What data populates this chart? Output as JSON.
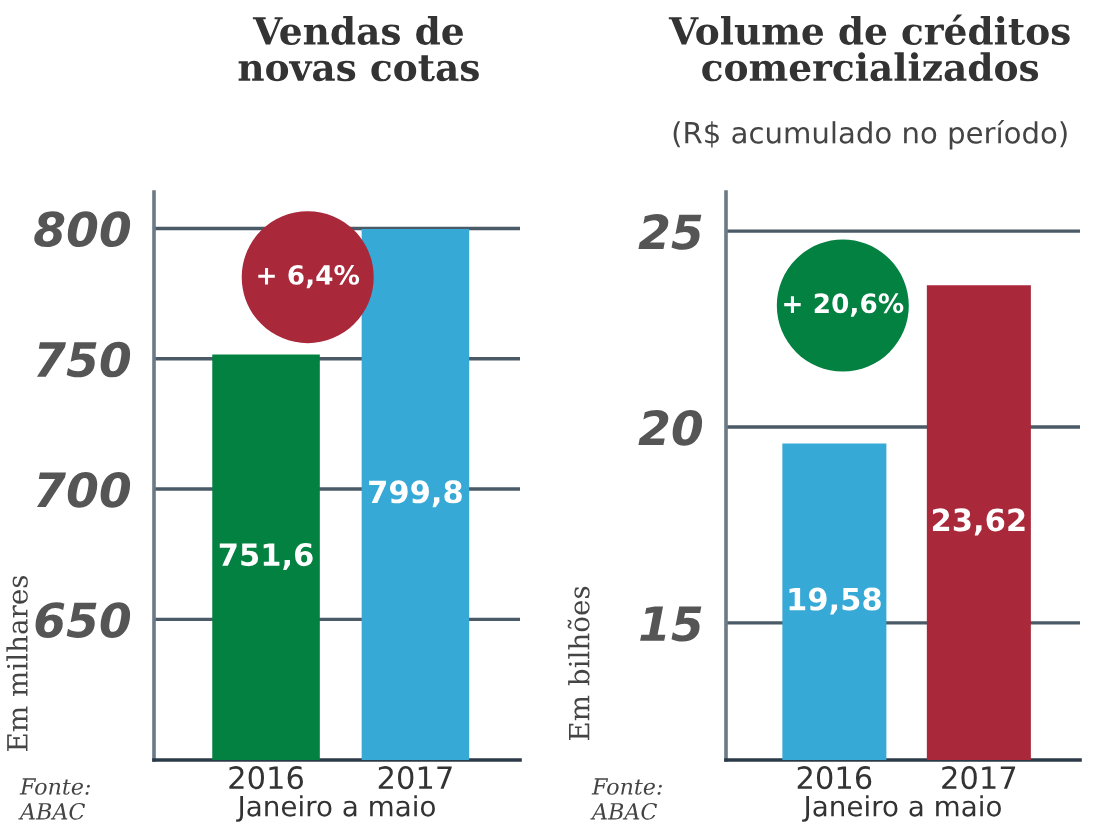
{
  "chart_data": [
    {
      "type": "bar",
      "title": "Vendas de\nnovas cotas",
      "categories": [
        "2016",
        "2017"
      ],
      "xlabel": "Janeiro a maio",
      "ylabel": "Em milhares",
      "series": [
        {
          "colors": [
            "#038141",
            "#36a9d6"
          ],
          "values": [
            751.6,
            799.8
          ],
          "value_labels": [
            "751,6",
            "799,8"
          ]
        }
      ],
      "ylim": [
        596,
        814
      ],
      "yticks": [
        650,
        700,
        750,
        800
      ],
      "grid": "y",
      "annotations": [
        "+ 6,4%",
        "Fonte:\nABAC"
      ]
    },
    {
      "type": "bar",
      "title": "Volume de créditos\ncomercializados",
      "subtitle": "(R$ acumulado no período)",
      "categories": [
        "2016",
        "2017"
      ],
      "xlabel": "Janeiro a maio",
      "ylabel": "Em bilhões",
      "series": [
        {
          "colors": [
            "#36a9d6",
            "#a9293b"
          ],
          "values": [
            19.58,
            23.62
          ],
          "value_labels": [
            "19,58",
            "23,62"
          ]
        }
      ],
      "ylim": [
        11.5,
        26
      ],
      "yticks": [
        15,
        20,
        25
      ],
      "grid": "y",
      "annotations": [
        "+ 20,6%",
        "Fonte:\nABAC"
      ]
    }
  ]
}
